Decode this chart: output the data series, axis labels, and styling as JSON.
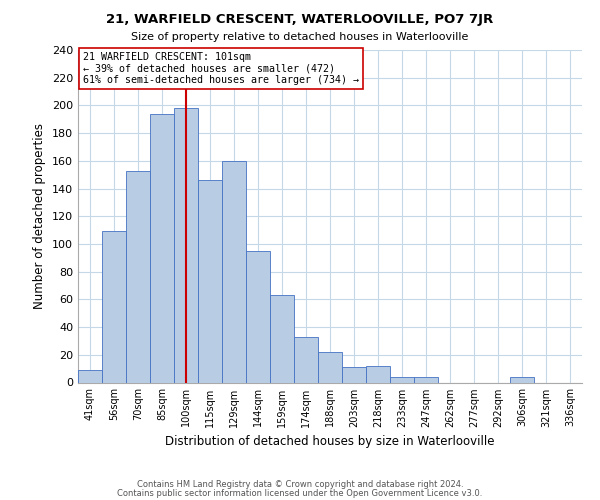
{
  "title": "21, WARFIELD CRESCENT, WATERLOOVILLE, PO7 7JR",
  "subtitle": "Size of property relative to detached houses in Waterlooville",
  "xlabel": "Distribution of detached houses by size in Waterlooville",
  "ylabel": "Number of detached properties",
  "footer_line1": "Contains HM Land Registry data © Crown copyright and database right 2024.",
  "footer_line2": "Contains public sector information licensed under the Open Government Licence v3.0.",
  "bin_labels": [
    "41sqm",
    "56sqm",
    "70sqm",
    "85sqm",
    "100sqm",
    "115sqm",
    "129sqm",
    "144sqm",
    "159sqm",
    "174sqm",
    "188sqm",
    "203sqm",
    "218sqm",
    "233sqm",
    "247sqm",
    "262sqm",
    "277sqm",
    "292sqm",
    "306sqm",
    "321sqm",
    "336sqm"
  ],
  "bar_values": [
    9,
    109,
    153,
    194,
    198,
    146,
    160,
    95,
    63,
    33,
    22,
    11,
    12,
    4,
    4,
    0,
    0,
    0,
    4,
    0,
    0
  ],
  "bar_color": "#b8cce4",
  "bar_edge_color": "#4472c4",
  "highlight_idx": 4,
  "highlight_color": "#cc0000",
  "annotation_title": "21 WARFIELD CRESCENT: 101sqm",
  "annotation_line1": "← 39% of detached houses are smaller (472)",
  "annotation_line2": "61% of semi-detached houses are larger (734) →",
  "annotation_box_edge": "#cc0000",
  "ylim": [
    0,
    240
  ],
  "yticks": [
    0,
    20,
    40,
    60,
    80,
    100,
    120,
    140,
    160,
    180,
    200,
    220,
    240
  ],
  "background_color": "#ffffff",
  "grid_color": "#c5d8e8"
}
